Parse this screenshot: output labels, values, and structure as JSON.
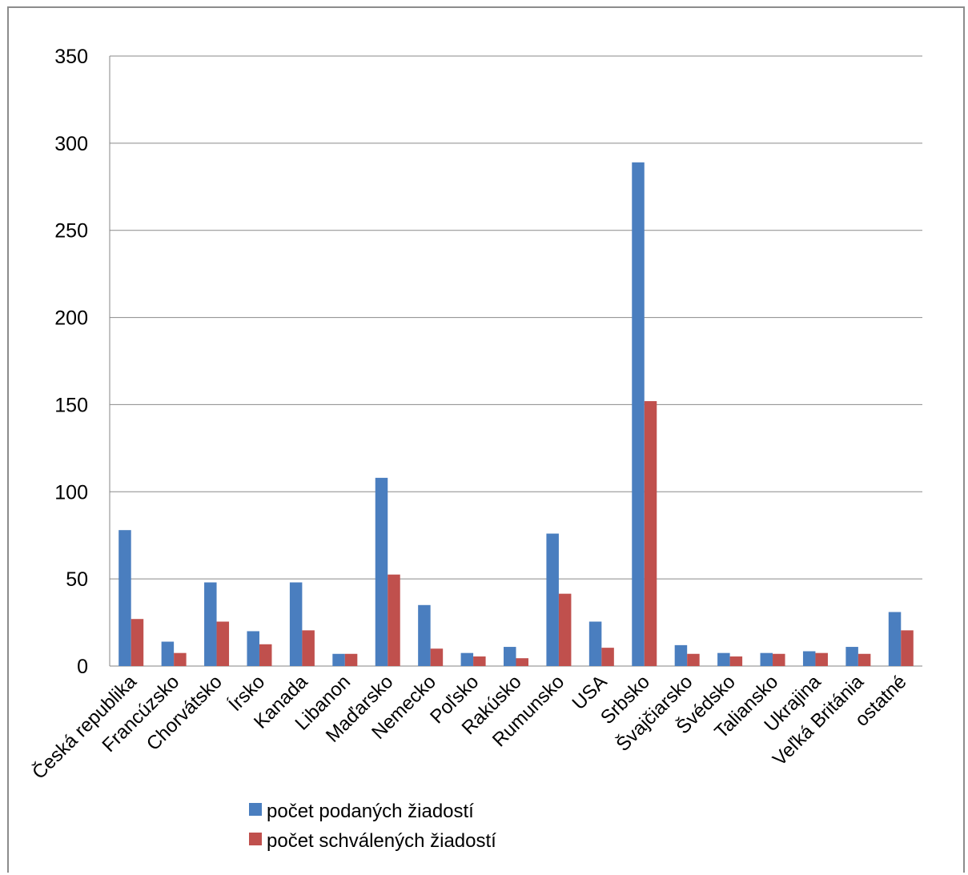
{
  "chart_data": {
    "type": "bar",
    "title": "",
    "xlabel": "",
    "ylabel": "",
    "ylim": [
      0,
      350
    ],
    "yticks": [
      0,
      50,
      100,
      150,
      200,
      250,
      300,
      350
    ],
    "grid": true,
    "legend_position": "bottom",
    "categories": [
      "Česká republika",
      "Francúzsko",
      "Chorvátsko",
      "Írsko",
      "Kanada",
      "Libanon",
      "Maďarsko",
      "Nemecko",
      "Poľsko",
      "Rakúsko",
      "Rumunsko",
      "USA",
      "Srbsko",
      "Švajčiarsko",
      "Švédsko",
      "Taliansko",
      "Ukrajina",
      "Veľká Británia",
      "ostatné"
    ],
    "series": [
      {
        "name": "počet podaných žiadostí",
        "color": "#4a7ebf",
        "values": [
          78,
          14,
          48,
          20,
          48,
          7,
          108,
          35,
          7.5,
          11,
          76,
          25.5,
          289,
          12,
          7.5,
          7.5,
          8.5,
          11,
          31
        ]
      },
      {
        "name": "počet schválených žiadostí",
        "color": "#c0504d",
        "values": [
          27,
          7.5,
          25.5,
          12.5,
          20.5,
          7,
          52.5,
          10,
          5.5,
          4.5,
          41.5,
          10.5,
          152,
          7,
          5.5,
          7,
          7.5,
          7,
          20.5
        ]
      }
    ]
  }
}
